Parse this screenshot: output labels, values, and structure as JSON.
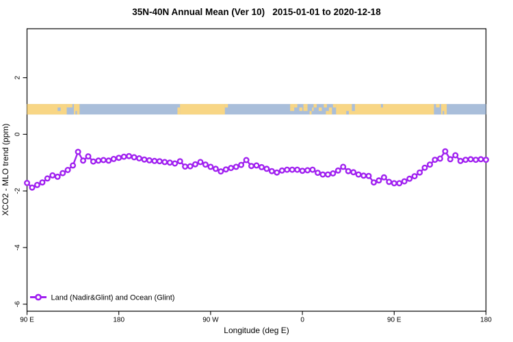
{
  "chart_data": {
    "type": "line",
    "title": "35N-40N Annual Mean (Ver 10)   2015-01-01 to 2020-12-18",
    "xlabel": "Longitude (deg E)",
    "ylabel": "XCO2 - MLO trend (ppm)",
    "xlim": [
      90,
      540
    ],
    "ylim": [
      -6.25,
      3.73
    ],
    "grid": false,
    "x_ticks": [
      {
        "v": 90,
        "label": "90 E"
      },
      {
        "v": 180,
        "label": "180"
      },
      {
        "v": 270,
        "label": "90 W"
      },
      {
        "v": 360,
        "label": "0"
      },
      {
        "v": 450,
        "label": "90 E"
      },
      {
        "v": 540,
        "label": "180"
      }
    ],
    "y_ticks": [
      {
        "v": 2,
        "label": "2"
      },
      {
        "v": 0,
        "label": "0"
      },
      {
        "v": -2,
        "label": "-2"
      },
      {
        "v": -4,
        "label": "-4"
      },
      {
        "v": -6,
        "label": "-6"
      }
    ],
    "legend": {
      "label": "Land (Nadir&Glint) and Ocean (Glint)",
      "position": "bottom-left"
    },
    "series": [
      {
        "name": "Land (Nadir&Glint) and Ocean (Glint)",
        "color": "#A020F0",
        "marker": "open-circle",
        "x": [
          90,
          95,
          100,
          105,
          110,
          115,
          120,
          125,
          130,
          135,
          140,
          145,
          150,
          155,
          160,
          165,
          170,
          175,
          180,
          185,
          190,
          195,
          200,
          205,
          210,
          215,
          220,
          225,
          230,
          235,
          240,
          245,
          250,
          255,
          260,
          265,
          270,
          275,
          280,
          285,
          290,
          295,
          300,
          305,
          310,
          315,
          320,
          325,
          330,
          335,
          340,
          345,
          350,
          355,
          360,
          365,
          370,
          375,
          380,
          385,
          390,
          395,
          400,
          405,
          410,
          415,
          420,
          425,
          430,
          435,
          440,
          445,
          450,
          455,
          460,
          465,
          470,
          475,
          480,
          485,
          490,
          495,
          500,
          505,
          510,
          515,
          520,
          525,
          530,
          535,
          540
        ],
        "values": [
          -1.72,
          -1.88,
          -1.79,
          -1.7,
          -1.56,
          -1.45,
          -1.5,
          -1.37,
          -1.26,
          -1.1,
          -0.62,
          -0.93,
          -0.78,
          -0.96,
          -0.93,
          -0.91,
          -0.93,
          -0.87,
          -0.83,
          -0.79,
          -0.77,
          -0.81,
          -0.85,
          -0.89,
          -0.92,
          -0.94,
          -0.95,
          -0.98,
          -1.0,
          -1.03,
          -0.95,
          -1.14,
          -1.13,
          -1.06,
          -0.98,
          -1.07,
          -1.15,
          -1.22,
          -1.31,
          -1.24,
          -1.19,
          -1.15,
          -1.08,
          -0.91,
          -1.12,
          -1.1,
          -1.16,
          -1.22,
          -1.3,
          -1.35,
          -1.28,
          -1.25,
          -1.25,
          -1.25,
          -1.29,
          -1.27,
          -1.25,
          -1.36,
          -1.42,
          -1.42,
          -1.38,
          -1.28,
          -1.15,
          -1.3,
          -1.34,
          -1.42,
          -1.46,
          -1.47,
          -1.7,
          -1.63,
          -1.52,
          -1.68,
          -1.73,
          -1.73,
          -1.66,
          -1.57,
          -1.48,
          -1.35,
          -1.18,
          -1.07,
          -0.9,
          -0.86,
          -0.6,
          -0.88,
          -0.74,
          -0.94,
          -0.9,
          -0.88,
          -0.9,
          -0.88,
          -0.9
        ]
      }
    ],
    "map_band": {
      "y_range": [
        0.7,
        1.07
      ],
      "ocean_color": "#A9BEDA",
      "land_color": "#F8D685",
      "land_segments": [
        [
          90,
          129
        ],
        [
          136,
          141.5
        ],
        [
          240,
          284
        ],
        [
          393,
          489
        ],
        [
          496,
          501.5
        ]
      ],
      "ocean_patches": [
        {
          "a": 120,
          "b": 123,
          "rows": [
            1
          ]
        },
        {
          "a": 129,
          "b": 135.5,
          "rows": [
            1,
            2
          ]
        },
        {
          "a": 137.5,
          "b": 139,
          "rows": [
            2
          ]
        },
        {
          "a": 403,
          "b": 405.5,
          "rows": [
            2
          ]
        },
        {
          "a": 408.5,
          "b": 411.5,
          "rows": [
            0,
            1
          ]
        },
        {
          "a": 437,
          "b": 439,
          "rows": [
            0
          ]
        },
        {
          "a": 489,
          "b": 495.5,
          "rows": [
            1,
            2
          ]
        },
        {
          "a": 497.5,
          "b": 499,
          "rows": [
            2
          ]
        }
      ],
      "land_patches": [
        {
          "a": 129,
          "b": 134.5,
          "rows": [
            0
          ]
        },
        {
          "a": 237.5,
          "b": 240,
          "rows": [
            1,
            2
          ]
        },
        {
          "a": 284,
          "b": 287,
          "rows": [
            0
          ]
        },
        {
          "a": 348,
          "b": 352,
          "rows": [
            0,
            1
          ]
        },
        {
          "a": 352,
          "b": 355,
          "rows": [
            0
          ]
        },
        {
          "a": 357,
          "b": 360,
          "rows": [
            1
          ]
        },
        {
          "a": 361,
          "b": 365,
          "rows": [
            0,
            1
          ]
        },
        {
          "a": 367,
          "b": 369,
          "rows": [
            2
          ]
        },
        {
          "a": 369.5,
          "b": 371,
          "rows": [
            1
          ]
        },
        {
          "a": 371,
          "b": 374,
          "rows": [
            0
          ]
        },
        {
          "a": 376,
          "b": 379,
          "rows": [
            1
          ]
        },
        {
          "a": 381,
          "b": 384,
          "rows": [
            0
          ]
        },
        {
          "a": 383,
          "b": 386,
          "rows": [
            2
          ]
        },
        {
          "a": 386,
          "b": 389,
          "rows": [
            1,
            2
          ]
        },
        {
          "a": 390,
          "b": 393,
          "rows": [
            0
          ]
        },
        {
          "a": 491,
          "b": 494.5,
          "rows": [
            0
          ]
        }
      ]
    },
    "frame_color": "#000000"
  }
}
